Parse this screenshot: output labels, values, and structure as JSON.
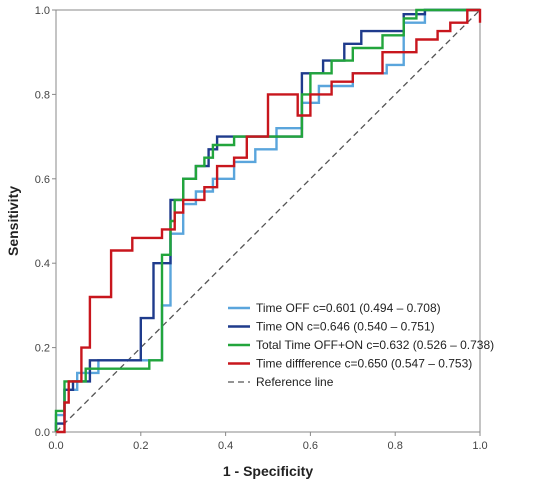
{
  "chart_data": {
    "type": "line",
    "title": "",
    "xlabel": "1 - Specificity",
    "ylabel": "Sensitivity",
    "xlim": [
      0,
      1
    ],
    "ylim": [
      0,
      1
    ],
    "x_ticks": [
      "0.0",
      "0.2",
      "0.4",
      "0.6",
      "0.8",
      "1.0"
    ],
    "y_ticks": [
      "0.0",
      "0.2",
      "0.4",
      "0.6",
      "0.8",
      "1.0"
    ],
    "grid": false,
    "legend_position": "bottom-right",
    "series": [
      {
        "name": "Time OFF c=0.601 (0.494 – 0.708)",
        "color": "#5aa5dc",
        "points": [
          [
            0,
            0
          ],
          [
            0,
            0.04
          ],
          [
            0.02,
            0.04
          ],
          [
            0.02,
            0.1
          ],
          [
            0.05,
            0.1
          ],
          [
            0.05,
            0.14
          ],
          [
            0.1,
            0.14
          ],
          [
            0.1,
            0.17
          ],
          [
            0.25,
            0.17
          ],
          [
            0.25,
            0.3
          ],
          [
            0.27,
            0.3
          ],
          [
            0.27,
            0.47
          ],
          [
            0.3,
            0.47
          ],
          [
            0.3,
            0.54
          ],
          [
            0.33,
            0.54
          ],
          [
            0.33,
            0.57
          ],
          [
            0.37,
            0.57
          ],
          [
            0.37,
            0.6
          ],
          [
            0.42,
            0.6
          ],
          [
            0.42,
            0.64
          ],
          [
            0.47,
            0.64
          ],
          [
            0.47,
            0.67
          ],
          [
            0.52,
            0.67
          ],
          [
            0.52,
            0.72
          ],
          [
            0.58,
            0.72
          ],
          [
            0.58,
            0.78
          ],
          [
            0.62,
            0.78
          ],
          [
            0.62,
            0.82
          ],
          [
            0.7,
            0.82
          ],
          [
            0.7,
            0.85
          ],
          [
            0.78,
            0.85
          ],
          [
            0.78,
            0.87
          ],
          [
            0.82,
            0.87
          ],
          [
            0.82,
            0.97
          ],
          [
            0.87,
            0.97
          ],
          [
            0.87,
            1
          ],
          [
            1,
            1
          ]
        ]
      },
      {
        "name": "Time ON c=0.646 (0.540 – 0.751)",
        "color": "#1f3b8c",
        "points": [
          [
            0,
            0
          ],
          [
            0,
            0.02
          ],
          [
            0.02,
            0.02
          ],
          [
            0.02,
            0.1
          ],
          [
            0.04,
            0.1
          ],
          [
            0.04,
            0.12
          ],
          [
            0.08,
            0.12
          ],
          [
            0.08,
            0.17
          ],
          [
            0.2,
            0.17
          ],
          [
            0.2,
            0.27
          ],
          [
            0.23,
            0.27
          ],
          [
            0.23,
            0.4
          ],
          [
            0.27,
            0.4
          ],
          [
            0.27,
            0.55
          ],
          [
            0.3,
            0.55
          ],
          [
            0.3,
            0.6
          ],
          [
            0.33,
            0.6
          ],
          [
            0.33,
            0.63
          ],
          [
            0.36,
            0.63
          ],
          [
            0.36,
            0.67
          ],
          [
            0.38,
            0.67
          ],
          [
            0.38,
            0.7
          ],
          [
            0.58,
            0.7
          ],
          [
            0.58,
            0.85
          ],
          [
            0.63,
            0.85
          ],
          [
            0.63,
            0.88
          ],
          [
            0.68,
            0.88
          ],
          [
            0.68,
            0.92
          ],
          [
            0.72,
            0.92
          ],
          [
            0.72,
            0.95
          ],
          [
            0.82,
            0.95
          ],
          [
            0.82,
            0.99
          ],
          [
            0.87,
            0.99
          ],
          [
            0.87,
            1
          ],
          [
            1,
            1
          ]
        ]
      },
      {
        "name": "Total Time OFF+ON c=0.632 (0.526 – 0.738)",
        "color": "#22a53c",
        "points": [
          [
            0,
            0
          ],
          [
            0,
            0.05
          ],
          [
            0.02,
            0.05
          ],
          [
            0.02,
            0.12
          ],
          [
            0.07,
            0.12
          ],
          [
            0.07,
            0.15
          ],
          [
            0.22,
            0.15
          ],
          [
            0.22,
            0.17
          ],
          [
            0.25,
            0.17
          ],
          [
            0.25,
            0.42
          ],
          [
            0.27,
            0.42
          ],
          [
            0.27,
            0.5
          ],
          [
            0.28,
            0.5
          ],
          [
            0.28,
            0.55
          ],
          [
            0.3,
            0.55
          ],
          [
            0.3,
            0.6
          ],
          [
            0.33,
            0.6
          ],
          [
            0.33,
            0.63
          ],
          [
            0.35,
            0.63
          ],
          [
            0.35,
            0.65
          ],
          [
            0.37,
            0.65
          ],
          [
            0.37,
            0.68
          ],
          [
            0.42,
            0.68
          ],
          [
            0.42,
            0.7
          ],
          [
            0.58,
            0.7
          ],
          [
            0.58,
            0.8
          ],
          [
            0.6,
            0.8
          ],
          [
            0.6,
            0.85
          ],
          [
            0.65,
            0.85
          ],
          [
            0.65,
            0.88
          ],
          [
            0.7,
            0.88
          ],
          [
            0.7,
            0.91
          ],
          [
            0.77,
            0.91
          ],
          [
            0.77,
            0.94
          ],
          [
            0.82,
            0.94
          ],
          [
            0.82,
            0.98
          ],
          [
            0.85,
            0.98
          ],
          [
            0.85,
            1
          ],
          [
            1,
            1
          ]
        ]
      },
      {
        "name": "Time diffference c=0.650 (0.547 – 0.753)",
        "color": "#c8161d",
        "points": [
          [
            0,
            0
          ],
          [
            0.02,
            0
          ],
          [
            0.02,
            0.07
          ],
          [
            0.03,
            0.07
          ],
          [
            0.03,
            0.12
          ],
          [
            0.06,
            0.12
          ],
          [
            0.06,
            0.2
          ],
          [
            0.08,
            0.2
          ],
          [
            0.08,
            0.32
          ],
          [
            0.13,
            0.32
          ],
          [
            0.13,
            0.43
          ],
          [
            0.18,
            0.43
          ],
          [
            0.18,
            0.46
          ],
          [
            0.25,
            0.46
          ],
          [
            0.25,
            0.48
          ],
          [
            0.28,
            0.48
          ],
          [
            0.28,
            0.52
          ],
          [
            0.3,
            0.52
          ],
          [
            0.3,
            0.55
          ],
          [
            0.35,
            0.55
          ],
          [
            0.35,
            0.58
          ],
          [
            0.38,
            0.58
          ],
          [
            0.38,
            0.63
          ],
          [
            0.42,
            0.63
          ],
          [
            0.42,
            0.65
          ],
          [
            0.45,
            0.65
          ],
          [
            0.45,
            0.7
          ],
          [
            0.5,
            0.7
          ],
          [
            0.5,
            0.8
          ],
          [
            0.57,
            0.8
          ],
          [
            0.57,
            0.75
          ],
          [
            0.6,
            0.75
          ],
          [
            0.6,
            0.8
          ],
          [
            0.65,
            0.8
          ],
          [
            0.65,
            0.83
          ],
          [
            0.7,
            0.83
          ],
          [
            0.7,
            0.85
          ],
          [
            0.77,
            0.85
          ],
          [
            0.77,
            0.9
          ],
          [
            0.85,
            0.9
          ],
          [
            0.85,
            0.93
          ],
          [
            0.9,
            0.93
          ],
          [
            0.9,
            0.95
          ],
          [
            0.93,
            0.95
          ],
          [
            0.93,
            0.97
          ],
          [
            0.97,
            0.97
          ],
          [
            0.97,
            1
          ],
          [
            1,
            1
          ],
          [
            1,
            0.97
          ]
        ]
      }
    ],
    "reference_line": {
      "name": "Reference line",
      "color": "#555555",
      "points": [
        [
          0,
          0
        ],
        [
          1,
          1
        ]
      ]
    }
  }
}
